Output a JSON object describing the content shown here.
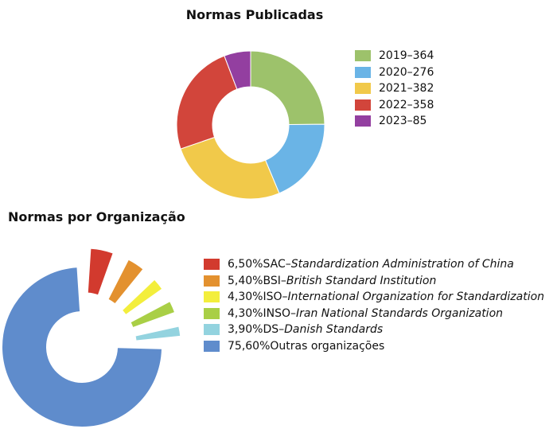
{
  "chart_data": [
    {
      "type": "pie",
      "title": "Normas Publicadas",
      "categories": [
        "2019",
        "2020",
        "2021",
        "2022",
        "2023"
      ],
      "values": [
        364,
        276,
        382,
        358,
        85
      ],
      "legend": [
        {
          "year": "2019",
          "value": "364",
          "color": "#9dc26b"
        },
        {
          "year": "2020",
          "value": "276",
          "color": "#6ab4e6"
        },
        {
          "year": "2021",
          "value": "382",
          "color": "#f1c94a"
        },
        {
          "year": "2022",
          "value": "358",
          "color": "#d2453b"
        },
        {
          "year": "2023",
          "value": "85",
          "color": "#933fa0"
        }
      ],
      "legend_position": "right"
    },
    {
      "type": "pie",
      "title": "Normas por Organização",
      "categories": [
        "SAC",
        "BSI",
        "ISO",
        "INSO",
        "DS",
        "Outras organizações"
      ],
      "values": [
        6.5,
        5.4,
        4.3,
        4.3,
        3.9,
        75.6
      ],
      "legend": [
        {
          "pct": "6,50%",
          "code": "SAC",
          "sep": "–",
          "org": "Standardization Administration of China",
          "color": "#d23a2e"
        },
        {
          "pct": "5,40%",
          "code": "BSI",
          "sep": "–",
          "org": "British Standard Institution",
          "color": "#e3912f"
        },
        {
          "pct": "4,30%",
          "code": "ISO",
          "sep": "–",
          "org": "International Organization for Standardization",
          "color": "#f3ee3c"
        },
        {
          "pct": "4,30%",
          "code": "INSO",
          "sep": "–",
          "org": "Iran National Standards Organization",
          "color": "#a9cf46"
        },
        {
          "pct": "3,90%",
          "code": "DS",
          "sep": "–",
          "org": "Danish Standards",
          "color": "#93d3df"
        },
        {
          "pct": "75,60%",
          "code": "Outras organizações",
          "sep": "",
          "org": "",
          "color": "#5f8ccc"
        }
      ],
      "legend_position": "right"
    }
  ]
}
